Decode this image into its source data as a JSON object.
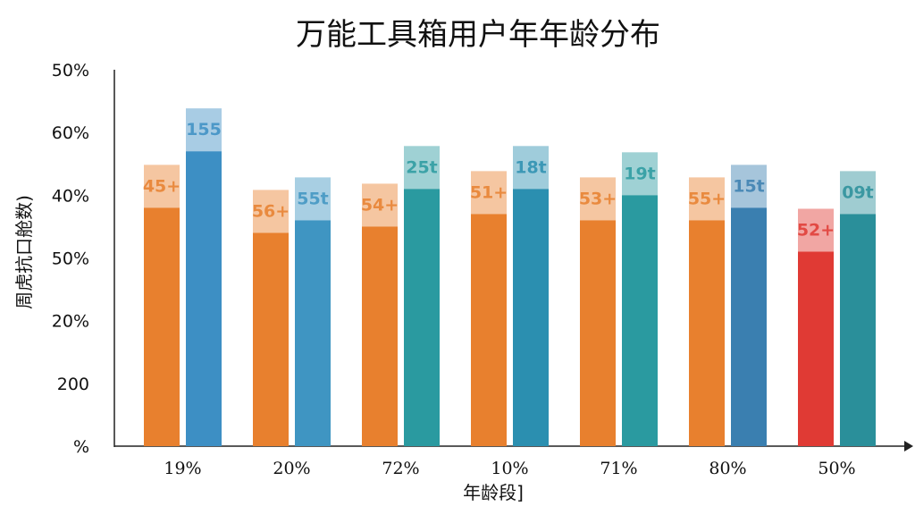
{
  "chart_data": {
    "type": "bar",
    "title": "万能工具箱用户年年龄分布",
    "xlabel": "年龄段]",
    "ylabel": "周虎抗口舱数)",
    "categories": [
      "19%",
      "20%",
      "72%",
      "10%",
      "71%",
      "80%",
      "50%"
    ],
    "y_tick_labels": [
      "%",
      "200",
      "20%",
      "50%",
      "40%",
      "60%",
      "50%"
    ],
    "ylim": [
      0,
      60
    ],
    "grid": false,
    "legend": "none",
    "series": [
      {
        "color": "#e8802e",
        "values": [
          38,
          34,
          35,
          37,
          36,
          36,
          31
        ],
        "labels": [
          "45+",
          "56+",
          "54+",
          "51+",
          "53+",
          "55+",
          "52+"
        ],
        "highlight": {
          "index": 6,
          "color": "#e03a34"
        }
      },
      {
        "color": "#3d8fc4",
        "values": [
          47,
          36,
          41,
          41,
          40,
          38,
          37
        ],
        "labels": [
          "155",
          "55t",
          "25t",
          "18t",
          "19t",
          "15t",
          "09t"
        ],
        "palette": [
          "#3d8fc4",
          "#3f95c2",
          "#2a9aa0",
          "#2b8fb0",
          "#2a9aa0",
          "#3a7fb0",
          "#2a8f9a"
        ]
      }
    ]
  }
}
